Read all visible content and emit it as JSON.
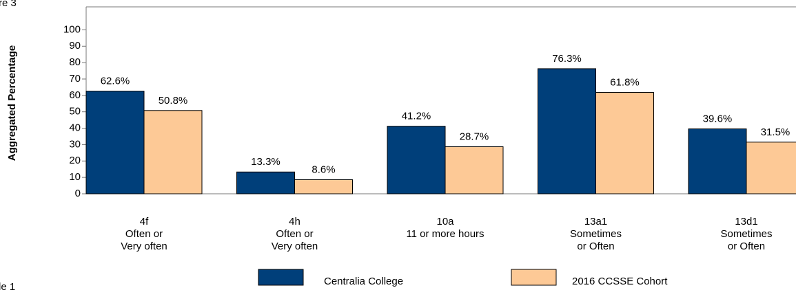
{
  "chart_data": {
    "type": "bar",
    "y_label": "Aggregated Percentage",
    "annotations": [
      "re 3",
      "le 1"
    ],
    "categories": [
      [
        "4f",
        "Often or",
        "Very often"
      ],
      [
        "4h",
        "Often or",
        "Very often"
      ],
      [
        "10a",
        "11 or more hours"
      ],
      [
        "13a1",
        "Sometimes",
        "or Often"
      ],
      [
        "13d1",
        "Sometimes",
        "or Often"
      ]
    ],
    "series": [
      {
        "name": "Centralia College",
        "color": "#003f7a",
        "values": [
          62.6,
          13.3,
          41.2,
          76.3,
          39.6
        ],
        "value_labels": [
          "62.6%",
          "13.3%",
          "41.2%",
          "76.3%",
          "39.6%"
        ]
      },
      {
        "name": "2016 CCSSE Cohort",
        "color": "#fdc996",
        "values": [
          50.8,
          8.6,
          28.7,
          61.8,
          31.5
        ],
        "value_labels": [
          "50.8%",
          "8.6%",
          "28.7%",
          "61.8%",
          "31.5%"
        ]
      }
    ],
    "ylim": [
      0,
      114
    ],
    "yticks": [
      0,
      10,
      20,
      30,
      40,
      50,
      60,
      70,
      80,
      90,
      100
    ]
  }
}
